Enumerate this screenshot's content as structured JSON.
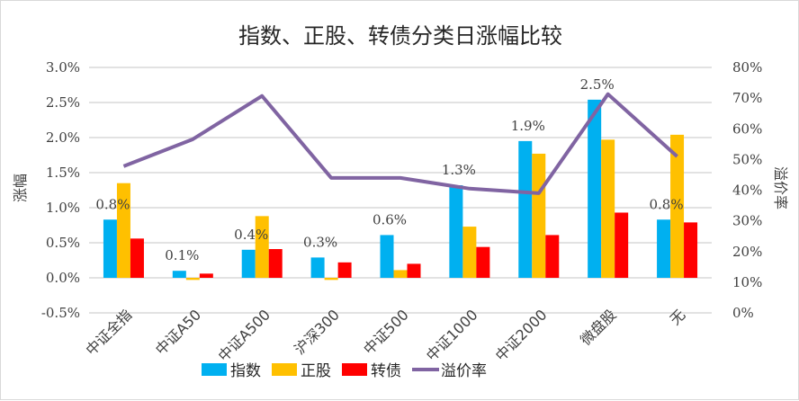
{
  "chart_data": {
    "type": "bar",
    "title": "指数、正股、转债分类日涨幅比较",
    "ylabel": "涨幅",
    "y2label": "溢价率",
    "ylim": [
      -0.5,
      3.0
    ],
    "y2lim": [
      0,
      80
    ],
    "yticks": [
      "3.0%",
      "2.5%",
      "2.0%",
      "1.5%",
      "1.0%",
      "0.5%",
      "0.0%",
      "-0.5%"
    ],
    "yticks_values": [
      3.0,
      2.5,
      2.0,
      1.5,
      1.0,
      0.5,
      0.0,
      -0.5
    ],
    "y2ticks": [
      "80%",
      "70%",
      "60%",
      "50%",
      "40%",
      "30%",
      "20%",
      "10%",
      "0%"
    ],
    "y2ticks_values": [
      80,
      70,
      60,
      50,
      40,
      30,
      20,
      10,
      0
    ],
    "grid": true,
    "legend_position": "bottom",
    "categories": [
      "中证全指",
      "中证A50",
      "中证A500",
      "沪深300",
      "中证500",
      "中证1000",
      "中证2000",
      "微盘股",
      "无"
    ],
    "series": [
      {
        "name": "指数",
        "type": "bar",
        "axis": "left",
        "color": "#00B0F0",
        "values": [
          0.83,
          0.1,
          0.4,
          0.29,
          0.61,
          1.32,
          1.95,
          2.54,
          0.83
        ]
      },
      {
        "name": "正股",
        "type": "bar",
        "axis": "left",
        "color": "#FFC000",
        "values": [
          1.35,
          -0.03,
          0.88,
          -0.03,
          0.11,
          0.73,
          1.77,
          1.97,
          2.04
        ]
      },
      {
        "name": "转债",
        "type": "bar",
        "axis": "left",
        "color": "#FF0000",
        "values": [
          0.56,
          0.06,
          0.41,
          0.22,
          0.2,
          0.44,
          0.61,
          0.93,
          0.79
        ]
      },
      {
        "name": "溢价率",
        "type": "line",
        "axis": "right",
        "color": "#8064A2",
        "values": [
          47.8,
          56.6,
          70.7,
          44.0,
          44.0,
          40.5,
          39.0,
          71.3,
          51.0
        ]
      }
    ],
    "data_labels": [
      "0.8%",
      "0.1%",
      "0.4%",
      "0.3%",
      "0.6%",
      "1.3%",
      "1.9%",
      "2.5%",
      "0.8%"
    ]
  }
}
